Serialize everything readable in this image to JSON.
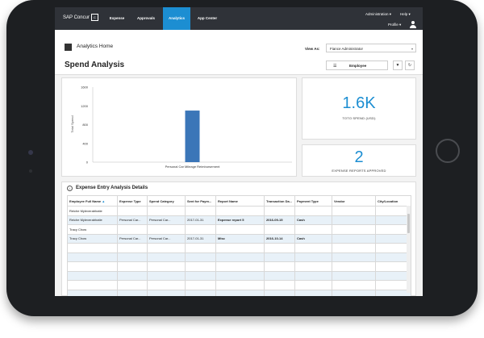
{
  "nav": {
    "logo": "SAP Concur",
    "logo_icon": "C",
    "items": [
      {
        "label": "Expense",
        "active": false
      },
      {
        "label": "Approvals",
        "active": false
      },
      {
        "label": "Analytics",
        "active": true
      },
      {
        "label": "App Center",
        "active": false
      }
    ],
    "administration": "Administration ▾",
    "help": "Help ▾",
    "profile": "Profile ▾"
  },
  "header": {
    "app_title": "Analytics Home",
    "page_title": "Spend Analysis",
    "view_as_label": "View As:",
    "view_as_value": "Fiance Administrator",
    "employee_button": "Employee"
  },
  "chart_data": {
    "type": "bar",
    "categories": [
      "Personal Car Mileage Reimbursement"
    ],
    "values": [
      1100
    ],
    "ylabel": "Total Spend",
    "ylim": [
      0,
      1600
    ],
    "yticks": [
      0,
      400,
      800,
      1200,
      1600
    ],
    "grid": false,
    "color": "#3b76b8"
  },
  "kpis": [
    {
      "value": "1.6K",
      "label": "TOTO SPEND (USD)"
    },
    {
      "value": "2",
      "label": "EXPENSE REPORTS APPROVED"
    }
  ],
  "details": {
    "title": "Expense Entry Analysis Details",
    "columns": [
      "Employee Full Name",
      "Expense Type",
      "Spend Category",
      "Sent for Paym...",
      "Report Name",
      "Transaction Da...",
      "Payment Type",
      "Vendor",
      "City/Location"
    ],
    "rows": [
      [
        "Reiche Myleverabhatie",
        "",
        "",
        "",
        "",
        "",
        "",
        "",
        ""
      ],
      [
        "Reiche Myleverabhatie",
        "Personal Car...",
        "Personal Car...",
        "2017-01-31",
        "Expense report 5",
        "2016-09-15",
        "Cash",
        "",
        ""
      ],
      [
        "Tracy Chow",
        "",
        "",
        "",
        "",
        "",
        "",
        "",
        ""
      ],
      [
        "Tracy Chow",
        "Personal Car...",
        "Personal Car...",
        "2017-01-31",
        "Misc",
        "2016-10-14",
        "Cash",
        "",
        ""
      ],
      [
        "",
        "",
        "",
        "",
        "",
        "",
        "",
        "",
        ""
      ],
      [
        "",
        "",
        "",
        "",
        "",
        "",
        "",
        "",
        ""
      ],
      [
        "",
        "",
        "",
        "",
        "",
        "",
        "",
        "",
        ""
      ],
      [
        "",
        "",
        "",
        "",
        "",
        "",
        "",
        "",
        ""
      ],
      [
        "",
        "",
        "",
        "",
        "",
        "",
        "",
        "",
        ""
      ],
      [
        "",
        "",
        "",
        "",
        "",
        "",
        "",
        "",
        ""
      ]
    ]
  }
}
